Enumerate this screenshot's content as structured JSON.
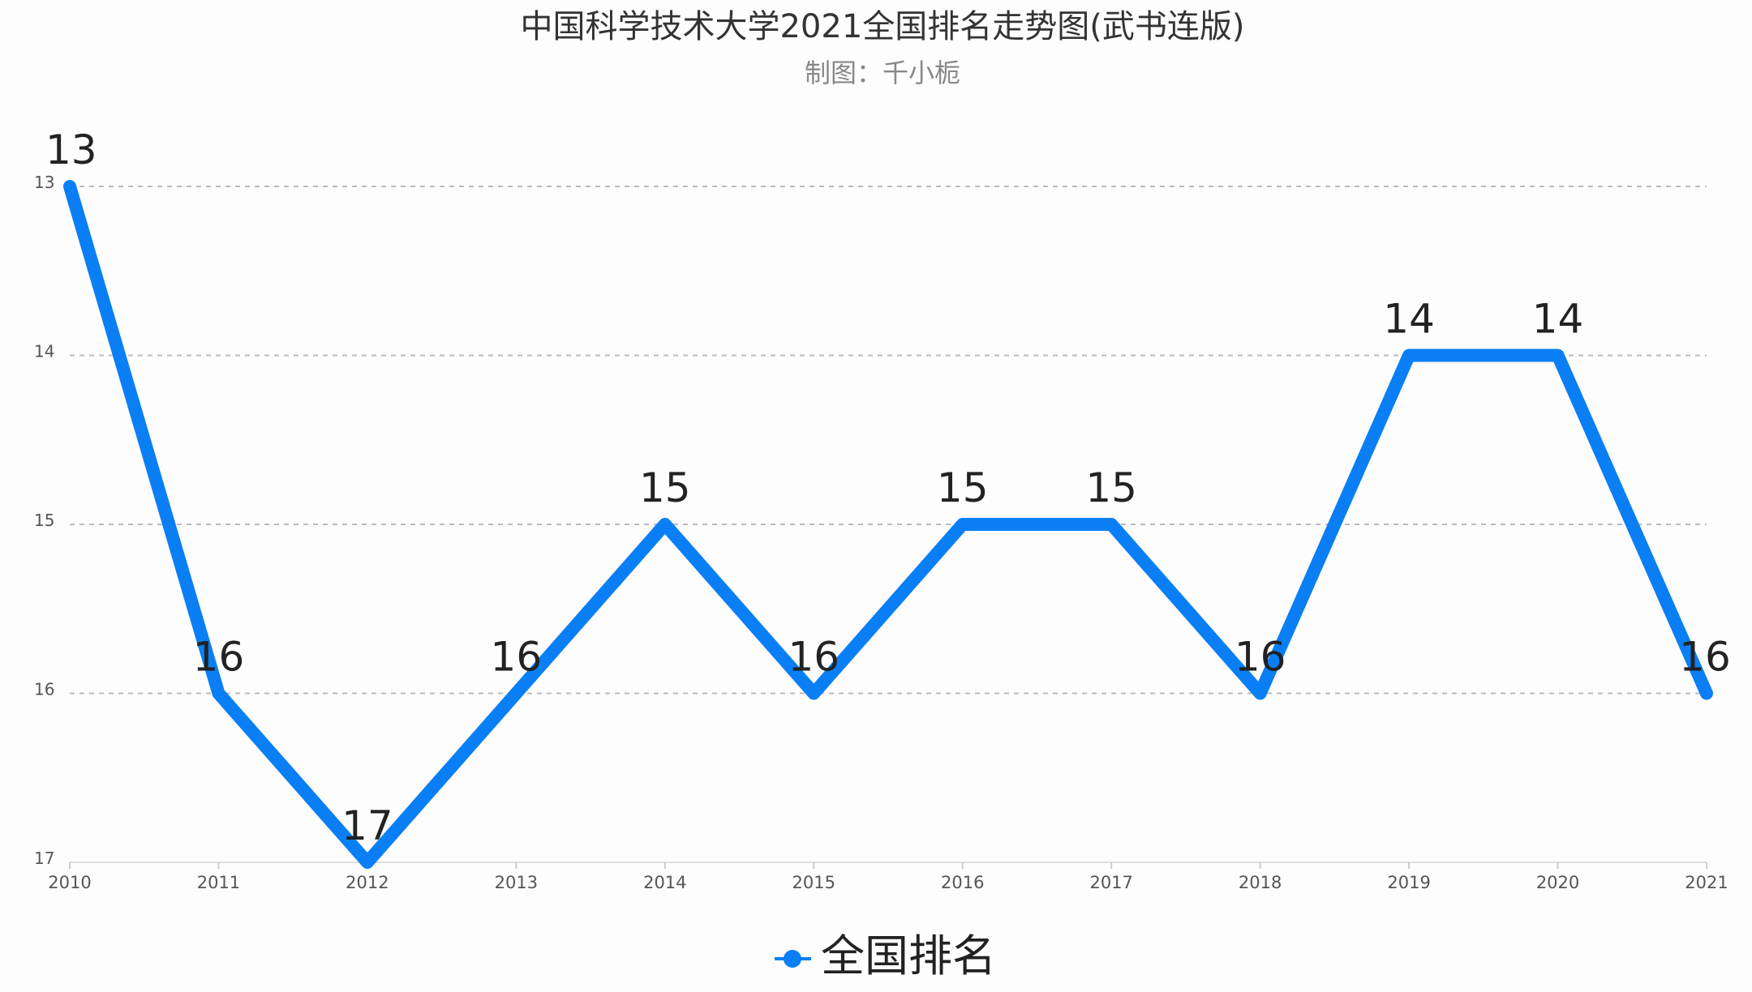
{
  "chart_data": {
    "type": "line",
    "title": "中国科学技术大学2021全国排名走势图(武书连版)",
    "subtitle": "制图：千小栀",
    "xlabel": "",
    "ylabel": "",
    "categories": [
      "2010",
      "2011",
      "2012",
      "2013",
      "2014",
      "2015",
      "2016",
      "2017",
      "2018",
      "2019",
      "2020",
      "2021"
    ],
    "series": [
      {
        "name": "全国排名",
        "values": [
          13,
          16,
          17,
          16,
          15,
          16,
          15,
          15,
          16,
          14,
          14,
          16
        ],
        "color": "#0a7ff5"
      }
    ],
    "ylim": [
      13,
      17
    ],
    "y_inverted": true,
    "yticks": [
      "13",
      "14",
      "15",
      "16",
      "17"
    ],
    "grid": true,
    "legend_position": "bottom",
    "data_labels": true
  }
}
